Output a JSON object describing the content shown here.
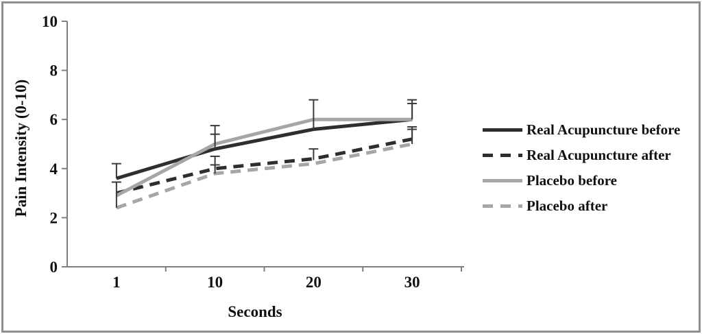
{
  "chart_data": {
    "type": "line",
    "title": "",
    "xlabel": "Seconds",
    "ylabel": "Pain Intensity (0-10)",
    "categories": [
      "1",
      "10",
      "20",
      "30"
    ],
    "ylim": [
      0,
      10
    ],
    "yticks": [
      0,
      2,
      4,
      6,
      8,
      10
    ],
    "grid": false,
    "legend_position": "right",
    "series": [
      {
        "name": "Real Acupuncture before",
        "style": "solid",
        "color": "#2e2e2e",
        "values": [
          3.6,
          4.8,
          5.6,
          6.0
        ]
      },
      {
        "name": "Real Acupuncture after",
        "style": "dashed",
        "color": "#2e2e2e",
        "values": [
          3.0,
          4.0,
          4.4,
          5.2
        ]
      },
      {
        "name": "Placebo before",
        "style": "solid",
        "color": "#a6a6a6",
        "values": [
          2.9,
          5.0,
          6.0,
          6.0
        ]
      },
      {
        "name": "Placebo after",
        "style": "dashed",
        "color": "#a6a6a6",
        "values": [
          2.4,
          3.8,
          4.2,
          5.0
        ]
      }
    ],
    "error_bars": [
      {
        "x": 0,
        "from": 3.6,
        "to": 4.2
      },
      {
        "x": 0,
        "from": 2.4,
        "to": 3.45
      },
      {
        "x": 1,
        "from": 5.0,
        "to": 5.75
      },
      {
        "x": 1,
        "from": 4.8,
        "to": 5.4
      },
      {
        "x": 1,
        "from": 4.0,
        "to": 4.5
      },
      {
        "x": 1,
        "from": 3.8,
        "to": 4.15
      },
      {
        "x": 2,
        "from": 5.6,
        "to": 6.8
      },
      {
        "x": 2,
        "from": 4.35,
        "to": 4.8
      },
      {
        "x": 3,
        "from": 6.0,
        "to": 6.8
      },
      {
        "x": 3,
        "from": 6.0,
        "to": 6.65
      },
      {
        "x": 3,
        "from": 5.2,
        "to": 5.7
      },
      {
        "x": 3,
        "from": 5.0,
        "to": 5.6
      }
    ]
  },
  "colors": {
    "axis": "#7f7f7f",
    "error_bar": "#3a3a3a",
    "tick_text": "#111111",
    "frame": "#8d8d8d"
  }
}
